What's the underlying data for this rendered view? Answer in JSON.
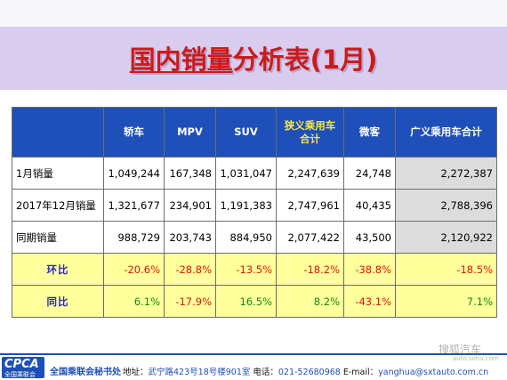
{
  "title": {
    "highlight": "国内销量",
    "rest": "分析表(1月)"
  },
  "table": {
    "headers": [
      "",
      "轿车",
      "MPV",
      "SUV",
      "狭义乘用车合计",
      "微客",
      "广义乘用车合计"
    ],
    "rows": [
      {
        "label": "1月销量",
        "values": [
          "1,049,244",
          "167,348",
          "1,031,047",
          "2,247,639",
          "24,748",
          "2,272,387"
        ]
      },
      {
        "label": "2017年12月销量",
        "values": [
          "1,321,677",
          "234,901",
          "1,191,383",
          "2,747,961",
          "40,435",
          "2,788,396"
        ]
      },
      {
        "label": "同期销量",
        "values": [
          "988,729",
          "203,743",
          "884,950",
          "2,077,422",
          "43,500",
          "2,120,922"
        ]
      },
      {
        "label": "环比",
        "values": [
          "-20.6%",
          "-28.8%",
          "-13.5%",
          "-18.2%",
          "-38.8%",
          "-18.5%"
        ]
      },
      {
        "label": "同比",
        "values": [
          "6.1%",
          "-17.9%",
          "16.5%",
          "8.2%",
          "-43.1%",
          "7.1%"
        ]
      }
    ]
  },
  "footer": {
    "logo_big": "CPCA",
    "logo_small": "全国乘联会",
    "org": "全国乘联会秘书处",
    "address_label": "地址：",
    "address": "武宁路423号18号楼901室",
    "phone_label": "电话：",
    "phone": "021-52680968",
    "email_label": "E-mail：",
    "email": "yanghua@sxtauto.com.cn"
  },
  "watermark": {
    "text": "搜狐汽车",
    "sub": "auto.sohu.com"
  }
}
